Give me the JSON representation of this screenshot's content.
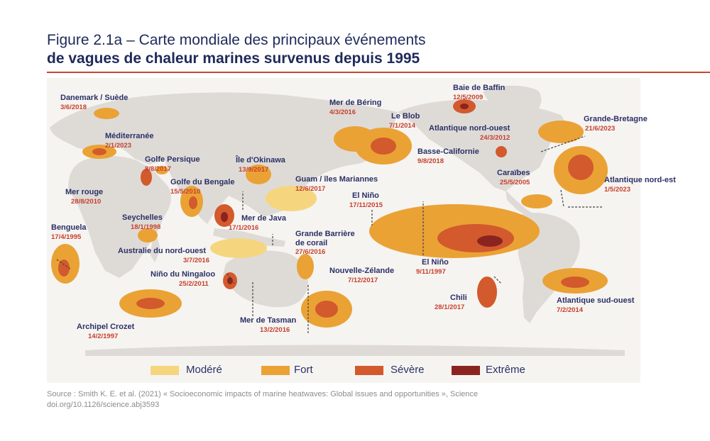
{
  "title": {
    "line1": "Figure 2.1a – Carte mondiale des principaux événements",
    "line2": "de vagues de chaleur marines survenus depuis 1995"
  },
  "colors": {
    "title": "#1f2a5a",
    "rule": "#c8452f",
    "event_name": "#2a3066",
    "event_date": "#c6402e",
    "land": "#dedbd7",
    "ocean": "#f6f4f1",
    "moderate": "#f5d67f",
    "strong": "#eaa235",
    "severe": "#d25a2d",
    "extreme": "#8b2420"
  },
  "events": [
    {
      "name": "Danemark / Suède",
      "date": "3/6/2018"
    },
    {
      "name": "Méditerranée",
      "date": "2/1/2023"
    },
    {
      "name": "Golfe Persique",
      "date": "8/8/2017"
    },
    {
      "name": "Mer rouge",
      "date": "28/8/2010"
    },
    {
      "name": "Golfe du Bengale",
      "date": "15/5/2010"
    },
    {
      "name": "Seychelles",
      "date": "18/1/1998"
    },
    {
      "name": "Benguela",
      "date": "17/4/1995"
    },
    {
      "name": "Australie du nord-ouest",
      "date": "3/7/2016"
    },
    {
      "name": "Niño du Ningaloo",
      "date": "25/2/2011"
    },
    {
      "name": "Archipel Crozet",
      "date": "14/2/1997"
    },
    {
      "name": "Île d'Okinawa",
      "date": "13/9/2017"
    },
    {
      "name": "Guam / îles Mariannes",
      "date": "12/6/2017"
    },
    {
      "name": "Mer de Java",
      "date": "17/1/2016"
    },
    {
      "name": "Grande Barrière\nde corail",
      "date": "27/6/2016"
    },
    {
      "name": "Mer de Tasman",
      "date": "13/2/2016"
    },
    {
      "name": "Nouvelle-Zélande",
      "date": "7/12/2017"
    },
    {
      "name": "Mer de Béring",
      "date": "4/3/2016"
    },
    {
      "name": "Le Blob",
      "date": "7/1/2014"
    },
    {
      "name": "Baie de Baffin",
      "date": "12/5/2009"
    },
    {
      "name": "Atlantique nord-ouest",
      "date": "24/3/2012"
    },
    {
      "name": "Basse-Californie",
      "date": "9/8/2018"
    },
    {
      "name": "Grande-Bretagne",
      "date": "21/6/2023"
    },
    {
      "name": "Caraïbes",
      "date": "25/5/2005"
    },
    {
      "name": "Atlantique nord-est",
      "date": "1/5/2023"
    },
    {
      "name": "El Niño",
      "date": "17/11/2015"
    },
    {
      "name": "El Niño",
      "date": "9/11/1997"
    },
    {
      "name": "Chili",
      "date": "28/1/2017"
    },
    {
      "name": "Atlantique sud-ouest",
      "date": "7/2/2014"
    }
  ],
  "legend": [
    {
      "label": "Modéré",
      "color": "#f5d67f"
    },
    {
      "label": "Fort",
      "color": "#eaa235"
    },
    {
      "label": "Sévère",
      "color": "#d25a2d"
    },
    {
      "label": "Extrême",
      "color": "#8b2420"
    }
  ],
  "source": {
    "line1": "Source : Smith K. E. et al. (2021) « Socioeconomic impacts of marine heatwaves: Global issues and opportunities », Science",
    "line2": "doi.org/10.1126/science.abj3593"
  }
}
